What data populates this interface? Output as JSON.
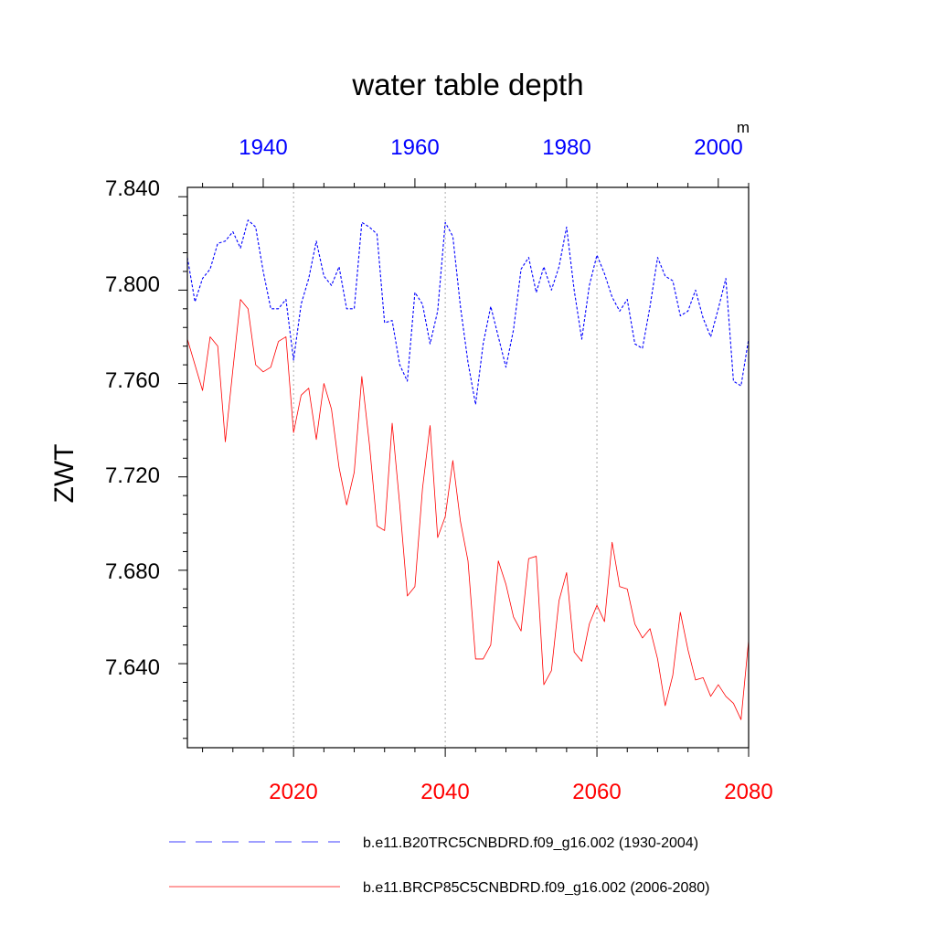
{
  "chart_data": {
    "type": "line",
    "title": "water table depth",
    "ylabel": "ZWT",
    "units": "m",
    "ylim": [
      7.604,
      7.844
    ],
    "yticks": [
      "7.840",
      "7.800",
      "7.760",
      "7.720",
      "7.680",
      "7.640"
    ],
    "top_axis": {
      "range": [
        1930,
        2004
      ],
      "ticks": [
        "1940",
        "1960",
        "1980",
        "2000"
      ],
      "color": "#0000ff"
    },
    "bottom_axis": {
      "range": [
        2006,
        2080
      ],
      "ticks": [
        "2020",
        "2040",
        "2060",
        "2080"
      ],
      "color": "#ff0000"
    },
    "series": [
      {
        "name": "b.e11.B20TRC5CNBDRD.f09_g16.002 (1930-2004)",
        "axis": "top",
        "color": "#0000ff",
        "dash": "dashed",
        "x_start": 1930,
        "values": [
          7.814,
          7.795,
          7.805,
          7.809,
          7.82,
          7.821,
          7.825,
          7.818,
          7.83,
          7.827,
          7.808,
          7.792,
          7.792,
          7.796,
          7.77,
          7.794,
          7.805,
          7.821,
          7.806,
          7.802,
          7.81,
          7.792,
          7.792,
          7.829,
          7.827,
          7.824,
          7.786,
          7.787,
          7.768,
          7.761,
          7.799,
          7.794,
          7.777,
          7.791,
          7.829,
          7.823,
          7.793,
          7.769,
          7.751,
          7.777,
          7.793,
          7.78,
          7.767,
          7.783,
          7.809,
          7.814,
          7.799,
          7.81,
          7.8,
          7.81,
          7.827,
          7.8,
          7.779,
          7.802,
          7.815,
          7.807,
          7.797,
          7.791,
          7.796,
          7.777,
          7.775,
          7.793,
          7.814,
          7.806,
          7.804,
          7.789,
          7.791,
          7.8,
          7.788,
          7.78,
          7.792,
          7.805,
          7.761,
          7.759,
          7.779
        ]
      },
      {
        "name": "b.e11.BRCP85C5CNBDRD.f09_g16.002 (2006-2080)",
        "axis": "bottom",
        "color": "#ff0000",
        "dash": "solid",
        "x_start": 2006,
        "values": [
          7.779,
          7.768,
          7.757,
          7.78,
          7.776,
          7.735,
          7.766,
          7.796,
          7.792,
          7.768,
          7.765,
          7.767,
          7.778,
          7.78,
          7.739,
          7.755,
          7.758,
          7.736,
          7.76,
          7.749,
          7.724,
          7.708,
          7.722,
          7.763,
          7.734,
          7.699,
          7.697,
          7.743,
          7.708,
          7.669,
          7.673,
          7.715,
          7.742,
          7.694,
          7.703,
          7.727,
          7.701,
          7.684,
          7.642,
          7.642,
          7.648,
          7.684,
          7.674,
          7.66,
          7.654,
          7.685,
          7.686,
          7.631,
          7.637,
          7.667,
          7.679,
          7.645,
          7.641,
          7.657,
          7.665,
          7.658,
          7.692,
          7.673,
          7.672,
          7.657,
          7.651,
          7.655,
          7.642,
          7.622,
          7.635,
          7.662,
          7.646,
          7.633,
          7.634,
          7.626,
          7.631,
          7.626,
          7.623,
          7.616,
          7.65
        ]
      }
    ]
  }
}
